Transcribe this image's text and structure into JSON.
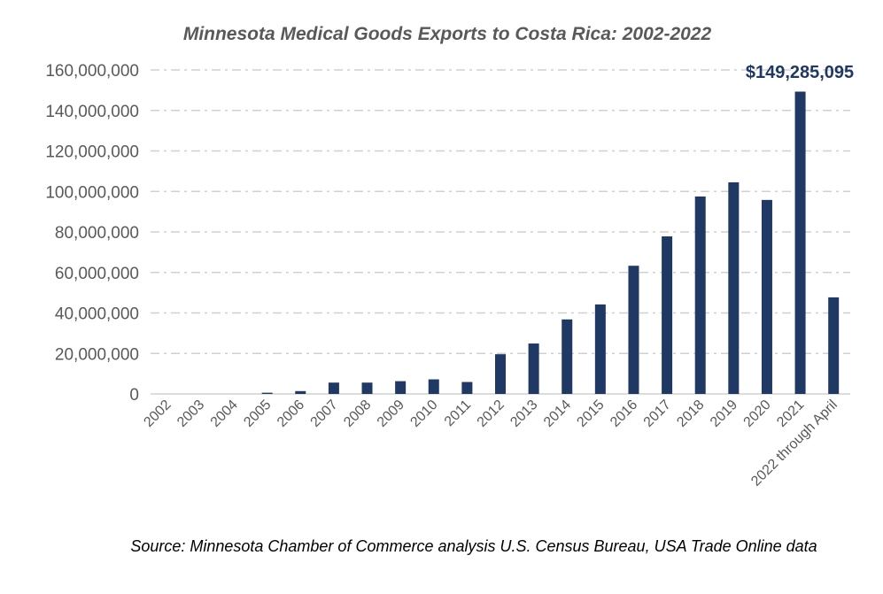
{
  "chart_data": {
    "type": "bar",
    "title": "Minnesota Medical Goods Exports to Costa Rica: 2002-2022",
    "categories": [
      "2002",
      "2003",
      "2004",
      "2005",
      "2006",
      "2007",
      "2008",
      "2009",
      "2010",
      "2011",
      "2012",
      "2013",
      "2014",
      "2015",
      "2016",
      "2017",
      "2018",
      "2019",
      "2020",
      "2021",
      "2022 through April"
    ],
    "values": [
      0,
      0,
      0,
      600000,
      1400000,
      5600000,
      5600000,
      6300000,
      7200000,
      5900000,
      19600000,
      24900000,
      36800000,
      44200000,
      63300000,
      77800000,
      97500000,
      104500000,
      95800000,
      149285095,
      47700000
    ],
    "ylim": [
      0,
      160000000
    ],
    "yticks": [
      "0",
      "20,000,000",
      "40,000,000",
      "60,000,000",
      "80,000,000",
      "100,000,000",
      "120,000,000",
      "140,000,000",
      "160,000,000"
    ],
    "annotation": "$149,285,095",
    "source": "Source: Minnesota Chamber of Commerce analysis U.S. Census Bureau, USA Trade Online data",
    "grid": true,
    "bar_color": "#1f3864"
  }
}
